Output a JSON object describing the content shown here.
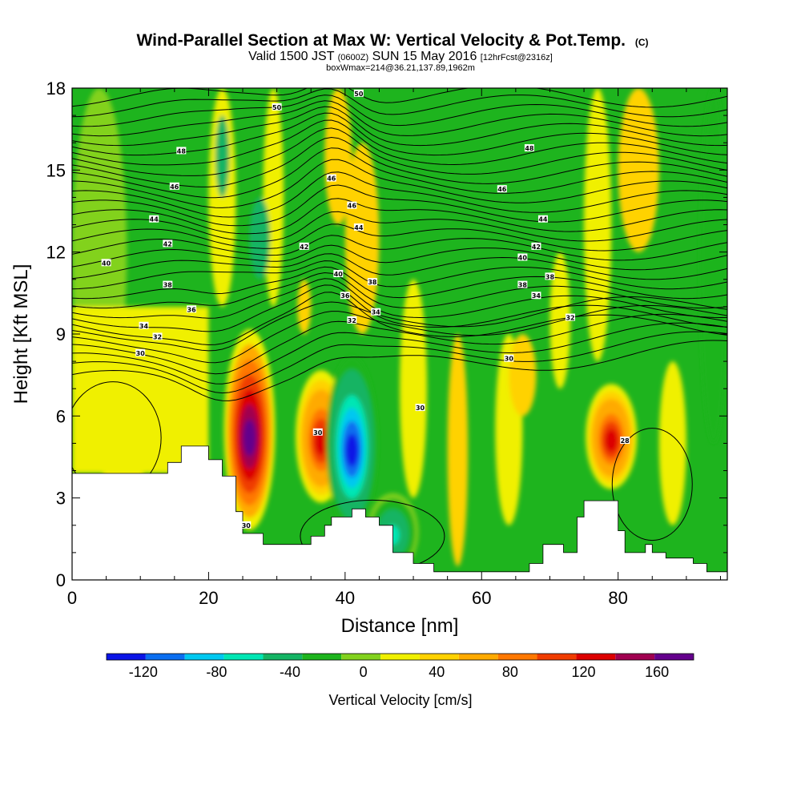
{
  "chart_data": {
    "type": "heatmap",
    "title": "Wind-Parallel Section at Max W: Vertical Velocity & Pot.Temp.",
    "title_mark": "(C)",
    "subtitle_parts": [
      "Valid 1500 JST",
      "(0600Z)",
      "SUN 15 May 2016",
      "[12hrFcst@2316z]"
    ],
    "subtitle2": "boxWmax=214@36.21,137.89,1962m",
    "xlabel": "Distance [nm]",
    "ylabel": "Height [Kft MSL]",
    "xlim": [
      0,
      96
    ],
    "ylim": [
      0,
      18
    ],
    "x_ticks": [
      0,
      20,
      40,
      60,
      80
    ],
    "y_ticks": [
      0,
      3,
      6,
      9,
      12,
      15,
      18
    ],
    "colorbar": {
      "label": "Vertical Velocity [cm/s]",
      "range": [
        -140,
        180
      ],
      "tick_values": [
        -120,
        -80,
        -40,
        0,
        40,
        80,
        120,
        160
      ],
      "tick_labels": [
        "-120",
        "-80",
        "-40",
        "0",
        "40",
        "80",
        "120",
        "160"
      ],
      "colors": [
        "#0a14e6",
        "#0a6ef0",
        "#00c8f0",
        "#00e6b4",
        "#14b464",
        "#1eb41e",
        "#82d21e",
        "#f0f000",
        "#ffd200",
        "#ffaa00",
        "#ff7800",
        "#f03c00",
        "#dc0000",
        "#a00050",
        "#64008c"
      ]
    },
    "updraft_cores": [
      {
        "x": 26,
        "y_top": 9,
        "y_bottom": 2,
        "w_max": 180
      },
      {
        "x": 36.5,
        "y_top": 7.5,
        "y_bottom": 3,
        "w_max": 120
      },
      {
        "x": 79,
        "y_top": 7,
        "y_bottom": 3.5,
        "w_max": 120
      }
    ],
    "downdraft_cores": [
      {
        "x": 41,
        "y_top": 8,
        "y_bottom": 2,
        "w_min": -120
      },
      {
        "x": 47,
        "y_top": 3,
        "y_bottom": 0.5,
        "w_min": -60
      }
    ],
    "terrain": {
      "x": [
        0,
        12,
        14,
        16,
        19,
        20,
        22,
        24,
        25,
        27,
        28,
        31,
        35,
        36,
        37,
        38,
        41,
        43,
        45,
        47,
        50,
        53,
        56,
        59,
        62,
        65,
        67,
        69,
        72,
        74,
        75,
        78,
        80,
        81,
        82,
        84,
        85,
        87,
        89,
        91,
        93,
        96
      ],
      "y": [
        3.9,
        3.9,
        4.3,
        4.9,
        4.9,
        4.4,
        3.8,
        2.5,
        1.7,
        1.7,
        1.3,
        1.3,
        1.6,
        1.6,
        2.0,
        2.3,
        2.6,
        2.3,
        2.0,
        1.0,
        0.6,
        0.3,
        0.3,
        0.3,
        0.3,
        0.3,
        0.6,
        1.3,
        1.0,
        2.3,
        2.9,
        2.9,
        1.8,
        1.0,
        1.0,
        1.3,
        1.0,
        0.8,
        0.8,
        0.6,
        0.3,
        0.3
      ]
    },
    "theta_contour_labels": [
      {
        "x": 30,
        "y": 17.3,
        "text": "50"
      },
      {
        "x": 42,
        "y": 17.8,
        "text": "50"
      },
      {
        "x": 16,
        "y": 15.7,
        "text": "48"
      },
      {
        "x": 67,
        "y": 15.8,
        "text": "48"
      },
      {
        "x": 15,
        "y": 14.4,
        "text": "46"
      },
      {
        "x": 38,
        "y": 14.7,
        "text": "46"
      },
      {
        "x": 41,
        "y": 13.7,
        "text": "46"
      },
      {
        "x": 63,
        "y": 14.3,
        "text": "46"
      },
      {
        "x": 12,
        "y": 13.2,
        "text": "44"
      },
      {
        "x": 42,
        "y": 12.9,
        "text": "44"
      },
      {
        "x": 69,
        "y": 13.2,
        "text": "44"
      },
      {
        "x": 14,
        "y": 12.3,
        "text": "42"
      },
      {
        "x": 34,
        "y": 12.2,
        "text": "42"
      },
      {
        "x": 68,
        "y": 12.2,
        "text": "42"
      },
      {
        "x": 5,
        "y": 11.6,
        "text": "40"
      },
      {
        "x": 39,
        "y": 11.2,
        "text": "40"
      },
      {
        "x": 66,
        "y": 11.8,
        "text": "40"
      },
      {
        "x": 14,
        "y": 10.8,
        "text": "38"
      },
      {
        "x": 44,
        "y": 10.9,
        "text": "38"
      },
      {
        "x": 66,
        "y": 10.8,
        "text": "38"
      },
      {
        "x": 70,
        "y": 11.1,
        "text": "38"
      },
      {
        "x": 40,
        "y": 10.4,
        "text": "36"
      },
      {
        "x": 17.5,
        "y": 9.9,
        "text": "36"
      },
      {
        "x": 68,
        "y": 10.4,
        "text": "34"
      },
      {
        "x": 10.5,
        "y": 9.3,
        "text": "34"
      },
      {
        "x": 44.5,
        "y": 9.8,
        "text": "34"
      },
      {
        "x": 12.5,
        "y": 8.9,
        "text": "32"
      },
      {
        "x": 41,
        "y": 9.5,
        "text": "32"
      },
      {
        "x": 73,
        "y": 9.6,
        "text": "32"
      },
      {
        "x": 10,
        "y": 8.3,
        "text": "30"
      },
      {
        "x": 64,
        "y": 8.1,
        "text": "30"
      },
      {
        "x": 51,
        "y": 6.3,
        "text": "30"
      },
      {
        "x": 36,
        "y": 5.4,
        "text": "30"
      },
      {
        "x": 81,
        "y": 5.1,
        "text": "28"
      },
      {
        "x": 25.5,
        "y": 2,
        "text": "30"
      }
    ]
  }
}
